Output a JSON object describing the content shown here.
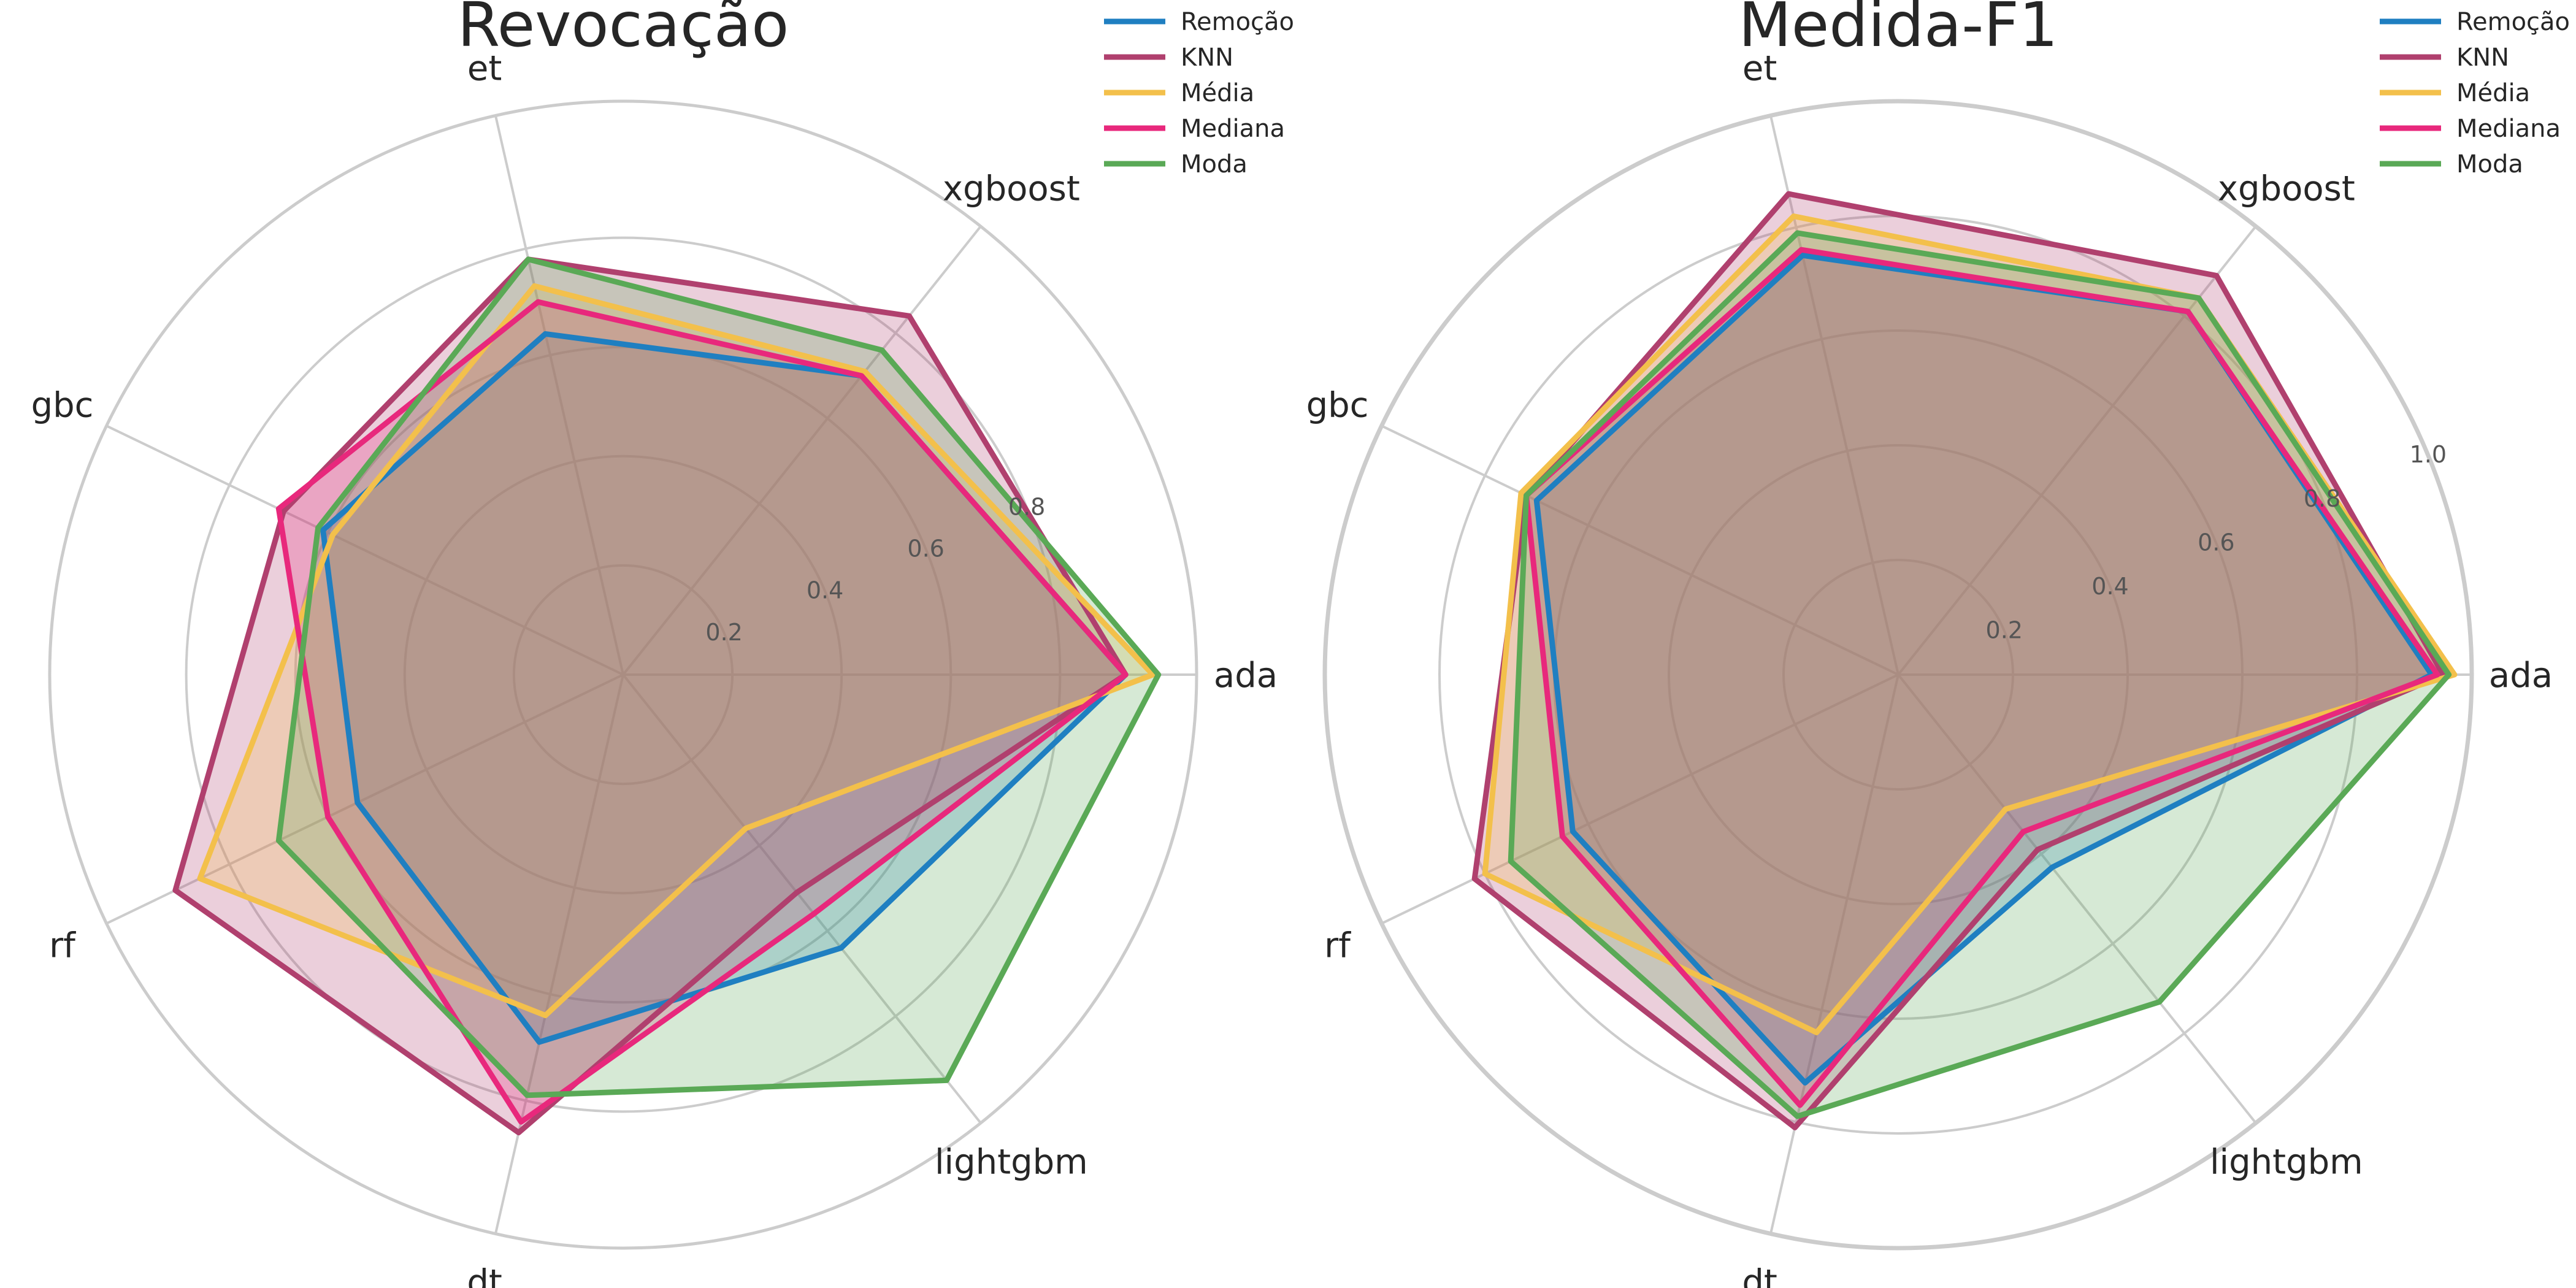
{
  "chart_data": [
    {
      "type": "radar",
      "title": "Revocação",
      "categories": [
        "ada",
        "xgboost",
        "et",
        "gbc",
        "rf",
        "dt",
        "lightgbm"
      ],
      "rlim": [
        0,
        1.05
      ],
      "rticks": [
        0.2,
        0.4,
        0.6,
        0.8
      ],
      "rtick_labels": [
        "0.2",
        "0.4",
        "0.6",
        "0.8"
      ],
      "grid": true,
      "legend": "top-right",
      "series": [
        {
          "name": "Remoção",
          "color": "#1f7fc1",
          "values": [
            0.92,
            0.7,
            0.64,
            0.61,
            0.54,
            0.69,
            0.64
          ]
        },
        {
          "name": "KNN",
          "color": "#b0406e",
          "values": [
            0.92,
            0.84,
            0.78,
            0.69,
            0.91,
            0.86,
            0.51
          ]
        },
        {
          "name": "Média",
          "color": "#f3c04b",
          "values": [
            0.97,
            0.71,
            0.73,
            0.59,
            0.86,
            0.64,
            0.36
          ]
        },
        {
          "name": "Mediana",
          "color": "#e8287c",
          "values": [
            0.92,
            0.7,
            0.7,
            0.7,
            0.6,
            0.84,
            0.56
          ]
        },
        {
          "name": "Moda",
          "color": "#5aa956",
          "values": [
            0.98,
            0.76,
            0.78,
            0.62,
            0.7,
            0.79,
            0.95
          ]
        }
      ]
    },
    {
      "type": "radar",
      "title": "Medida-F1",
      "categories": [
        "ada",
        "xgboost",
        "et",
        "gbc",
        "rf",
        "dt",
        "lightgbm"
      ],
      "rlim": [
        0,
        1.0
      ],
      "rticks": [
        0.2,
        0.4,
        0.6,
        0.8,
        1.0
      ],
      "rtick_labels": [
        "0.2",
        "0.4",
        "0.6",
        "0.8",
        "1.0"
      ],
      "grid": true,
      "legend": "top-right",
      "series": [
        {
          "name": "Remoção",
          "color": "#1f7fc1",
          "values": [
            0.93,
            0.81,
            0.75,
            0.7,
            0.63,
            0.73,
            0.43
          ]
        },
        {
          "name": "KNN",
          "color": "#b0406e",
          "values": [
            0.95,
            0.89,
            0.86,
            0.72,
            0.82,
            0.81,
            0.39
          ]
        },
        {
          "name": "Média",
          "color": "#f3c04b",
          "values": [
            0.97,
            0.84,
            0.82,
            0.73,
            0.8,
            0.64,
            0.3
          ]
        },
        {
          "name": "Mediana",
          "color": "#e8287c",
          "values": [
            0.94,
            0.81,
            0.76,
            0.72,
            0.65,
            0.77,
            0.35
          ]
        },
        {
          "name": "Moda",
          "color": "#5aa956",
          "values": [
            0.96,
            0.84,
            0.79,
            0.72,
            0.75,
            0.79,
            0.73
          ]
        }
      ]
    }
  ]
}
